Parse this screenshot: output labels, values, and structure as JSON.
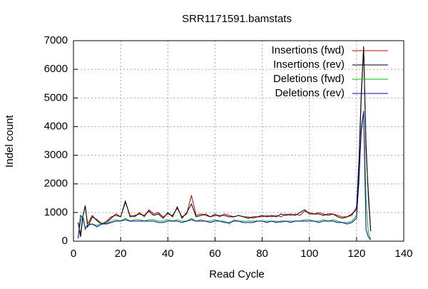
{
  "chart_data": {
    "type": "line",
    "title": "SRR1171591.bamstats",
    "x_label": "Read Cycle",
    "y_label": "Indel count",
    "x": [
      2,
      3,
      4,
      5,
      6,
      8,
      10,
      12,
      14,
      16,
      18,
      20,
      22,
      24,
      26,
      28,
      30,
      32,
      34,
      36,
      38,
      40,
      42,
      44,
      46,
      48,
      50,
      52,
      54,
      56,
      58,
      60,
      62,
      64,
      66,
      68,
      70,
      72,
      74,
      76,
      78,
      80,
      82,
      84,
      86,
      88,
      90,
      92,
      94,
      96,
      98,
      100,
      102,
      104,
      106,
      108,
      110,
      112,
      114,
      116,
      118,
      120,
      121,
      122,
      123,
      124,
      125,
      126
    ],
    "series": [
      {
        "name": "Insertions (fwd)",
        "color": "#c00000",
        "values": [
          650,
          250,
          900,
          1200,
          600,
          900,
          700,
          600,
          700,
          850,
          900,
          850,
          1350,
          900,
          850,
          1000,
          850,
          1100,
          950,
          1000,
          850,
          950,
          900,
          1150,
          850,
          950,
          1600,
          900,
          950,
          900,
          850,
          950,
          850,
          950,
          900,
          850,
          900,
          850,
          850,
          800,
          850,
          850,
          900,
          850,
          900,
          850,
          950,
          900,
          950,
          900,
          1050,
          1000,
          950,
          1000,
          950,
          900,
          950,
          900,
          850,
          850,
          900,
          1200,
          2500,
          5000,
          6750,
          3500,
          1500,
          350
        ]
      },
      {
        "name": "Insertions (rev)",
        "color": "#000000",
        "values": [
          650,
          150,
          850,
          1250,
          500,
          850,
          750,
          600,
          650,
          800,
          950,
          850,
          1400,
          850,
          900,
          950,
          900,
          1050,
          900,
          950,
          800,
          1000,
          850,
          1200,
          800,
          1000,
          1300,
          850,
          900,
          950,
          850,
          900,
          900,
          900,
          850,
          850,
          900,
          850,
          800,
          850,
          850,
          900,
          850,
          900,
          850,
          950,
          900,
          950,
          900,
          1000,
          1100,
          950,
          950,
          950,
          900,
          950,
          950,
          850,
          800,
          850,
          950,
          1100,
          2800,
          5200,
          6800,
          3200,
          1700,
          350
        ]
      },
      {
        "name": "Deletions (fwd)",
        "color": "#00c000",
        "values": [
          100,
          700,
          900,
          400,
          600,
          600,
          550,
          650,
          600,
          700,
          750,
          700,
          800,
          700,
          750,
          750,
          700,
          750,
          750,
          700,
          700,
          750,
          700,
          750,
          700,
          700,
          800,
          700,
          750,
          700,
          700,
          750,
          700,
          700,
          600,
          750,
          700,
          700,
          700,
          700,
          700,
          700,
          700,
          700,
          700,
          650,
          700,
          700,
          700,
          700,
          750,
          750,
          700,
          700,
          750,
          700,
          750,
          700,
          650,
          650,
          700,
          900,
          2000,
          4000,
          4500,
          1500,
          300,
          50
        ]
      },
      {
        "name": "Deletions (rev)",
        "color": "#0000c0",
        "values": [
          100,
          900,
          800,
          450,
          550,
          600,
          500,
          600,
          600,
          650,
          700,
          700,
          750,
          700,
          700,
          700,
          700,
          700,
          700,
          650,
          650,
          700,
          700,
          700,
          650,
          700,
          750,
          700,
          700,
          700,
          650,
          700,
          700,
          650,
          650,
          700,
          700,
          650,
          650,
          650,
          700,
          700,
          650,
          700,
          650,
          700,
          700,
          650,
          700,
          700,
          700,
          700,
          700,
          650,
          700,
          700,
          700,
          650,
          650,
          600,
          650,
          800,
          2200,
          3800,
          4550,
          400,
          150,
          50
        ]
      }
    ],
    "xlim": [
      0,
      140
    ],
    "xticks": [
      0,
      20,
      40,
      60,
      80,
      100,
      120,
      140
    ],
    "ylim": [
      0,
      7000
    ],
    "yticks": [
      0,
      1000,
      2000,
      3000,
      4000,
      5000,
      6000,
      7000
    ],
    "grid": true,
    "legend": "top-right"
  }
}
